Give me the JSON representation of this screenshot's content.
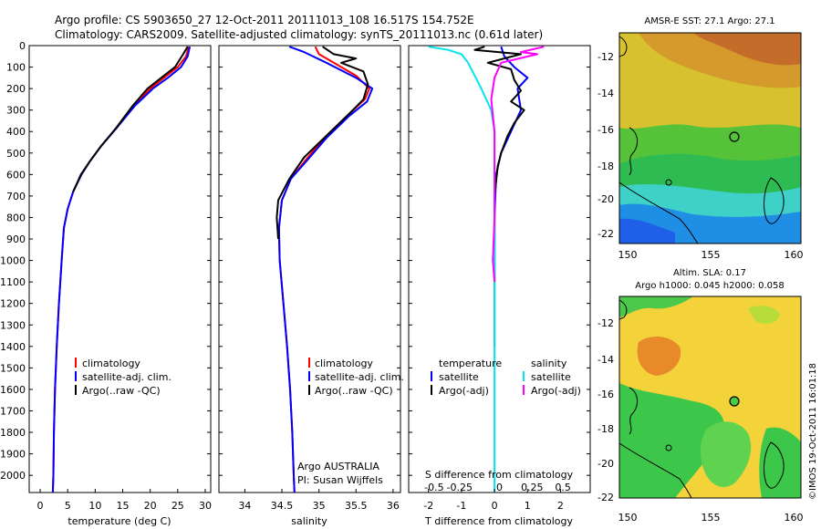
{
  "title": {
    "line1": "Argo profile: CS 5903650_27 12-Oct-2011 20111013_108 16.517S 154.752E",
    "line2": "Climatology: CARS2009. Satellite-adjusted climatology: synTS_20111013.nc (0.61d later)"
  },
  "colors": {
    "climatology": "#ff0000",
    "satellite": "#0000ff",
    "argo": "#000000",
    "sal_sat": "#00e5ee",
    "sal_argo": "#ff00ff"
  },
  "depth_axis": {
    "ticks": [
      0,
      100,
      200,
      300,
      400,
      500,
      600,
      700,
      800,
      900,
      1000,
      1100,
      1200,
      1300,
      1400,
      1500,
      1600,
      1700,
      1800,
      1900,
      2000
    ],
    "range": [
      0,
      2080
    ]
  },
  "chart_data": [
    {
      "type": "line",
      "id": "temperature",
      "xlabel": "temperature (deg C)",
      "xlim": [
        -2,
        31
      ],
      "xticks": [
        0,
        5,
        10,
        15,
        20,
        25,
        30
      ],
      "legend": [
        "climatology",
        "satellite-adj. clim.",
        "Argo(..raw -QC)"
      ],
      "series": [
        {
          "name": "climatology",
          "color": "#ff0000",
          "points": [
            [
              27.0,
              5
            ],
            [
              26.5,
              50
            ],
            [
              25.0,
              100
            ],
            [
              22.5,
              150
            ],
            [
              20.0,
              200
            ],
            [
              17.0,
              280
            ],
            [
              14.0,
              380
            ],
            [
              11.0,
              470
            ],
            [
              9.0,
              540
            ],
            [
              7.5,
              600
            ],
            [
              6.0,
              680
            ],
            [
              5.0,
              760
            ],
            [
              4.3,
              850
            ],
            [
              3.9,
              1000
            ],
            [
              3.4,
              1200
            ],
            [
              3.0,
              1400
            ],
            [
              2.7,
              1600
            ],
            [
              2.5,
              1800
            ],
            [
              2.4,
              2000
            ],
            [
              2.3,
              2080
            ]
          ]
        },
        {
          "name": "satellite-adj. clim.",
          "color": "#0000ff",
          "points": [
            [
              27.2,
              5
            ],
            [
              26.8,
              50
            ],
            [
              25.6,
              100
            ],
            [
              23.2,
              150
            ],
            [
              20.5,
              200
            ],
            [
              17.2,
              280
            ],
            [
              14.0,
              380
            ],
            [
              11.0,
              470
            ],
            [
              9.0,
              540
            ],
            [
              7.5,
              600
            ],
            [
              6.0,
              680
            ],
            [
              5.0,
              760
            ],
            [
              4.3,
              850
            ],
            [
              3.9,
              1000
            ],
            [
              3.4,
              1200
            ],
            [
              3.0,
              1400
            ],
            [
              2.7,
              1600
            ],
            [
              2.5,
              1800
            ],
            [
              2.4,
              2000
            ],
            [
              2.3,
              2080
            ]
          ]
        },
        {
          "name": "Argo(..raw -QC)",
          "color": "#000000",
          "points": [
            [
              26.8,
              5
            ],
            [
              26.0,
              40
            ],
            [
              24.5,
              100
            ],
            [
              22.0,
              150
            ],
            [
              19.5,
              200
            ],
            [
              16.8,
              280
            ],
            [
              13.9,
              380
            ],
            [
              11.0,
              470
            ],
            [
              9.0,
              540
            ],
            [
              7.4,
              600
            ],
            [
              6.0,
              680
            ]
          ]
        }
      ]
    },
    {
      "type": "line",
      "id": "salinity",
      "xlabel": "salinity",
      "xlim": [
        33.65,
        36.1
      ],
      "xticks": [
        34,
        34.5,
        35,
        35.5,
        36
      ],
      "legend": [
        "climatology",
        "satellite-adj. clim.",
        "Argo(..raw -QC)"
      ],
      "annotation": [
        "Argo AUSTRALIA",
        "PI: Susan Wijffels"
      ],
      "series": [
        {
          "name": "climatology",
          "color": "#ff0000",
          "points": [
            [
              34.95,
              5
            ],
            [
              35.0,
              40
            ],
            [
              35.2,
              80
            ],
            [
              35.5,
              140
            ],
            [
              35.68,
              200
            ],
            [
              35.62,
              250
            ],
            [
              35.4,
              320
            ],
            [
              35.1,
              420
            ],
            [
              34.85,
              520
            ],
            [
              34.62,
              620
            ],
            [
              34.5,
              720
            ],
            [
              34.46,
              850
            ],
            [
              34.47,
              1000
            ],
            [
              34.52,
              1200
            ],
            [
              34.57,
              1400
            ],
            [
              34.61,
              1600
            ],
            [
              34.64,
              1800
            ],
            [
              34.66,
              2000
            ],
            [
              34.67,
              2080
            ]
          ]
        },
        {
          "name": "satellite-adj. clim.",
          "color": "#0000ff",
          "points": [
            [
              34.6,
              5
            ],
            [
              34.8,
              30
            ],
            [
              35.1,
              80
            ],
            [
              35.5,
              150
            ],
            [
              35.72,
              200
            ],
            [
              35.65,
              260
            ],
            [
              35.4,
              330
            ],
            [
              35.1,
              430
            ],
            [
              34.85,
              530
            ],
            [
              34.62,
              620
            ],
            [
              34.5,
              720
            ],
            [
              34.46,
              850
            ],
            [
              34.47,
              1000
            ],
            [
              34.52,
              1200
            ],
            [
              34.57,
              1400
            ],
            [
              34.61,
              1600
            ],
            [
              34.64,
              1800
            ],
            [
              34.66,
              2000
            ],
            [
              34.67,
              2080
            ]
          ]
        },
        {
          "name": "Argo(..raw -QC)",
          "color": "#000000",
          "points": [
            [
              35.05,
              5
            ],
            [
              35.2,
              40
            ],
            [
              35.5,
              60
            ],
            [
              35.3,
              80
            ],
            [
              35.6,
              120
            ],
            [
              35.66,
              180
            ],
            [
              35.6,
              250
            ],
            [
              35.4,
              320
            ],
            [
              35.1,
              420
            ],
            [
              34.8,
              520
            ],
            [
              34.6,
              620
            ],
            [
              34.45,
              720
            ],
            [
              34.43,
              800
            ],
            [
              34.45,
              900
            ]
          ]
        }
      ]
    },
    {
      "type": "line",
      "id": "difference",
      "xlabel": "T difference from climatology",
      "xlim": [
        -2.6,
        2.9
      ],
      "xticks": [
        -2,
        -1,
        0,
        1,
        2
      ],
      "x2label": "S difference from climatology",
      "x2ticks": [
        "-0.5",
        "-0.25",
        "0",
        "0.25",
        "0.5"
      ],
      "legend": [
        "temperature",
        "satellite",
        "Argo(-adj)",
        "salinity",
        "satellite",
        "Argo(-adj)"
      ],
      "series": [
        {
          "name": "temperature satellite",
          "color": "#0000ff",
          "points": [
            [
              0.2,
              5
            ],
            [
              0.3,
              50
            ],
            [
              0.6,
              100
            ],
            [
              1.0,
              150
            ],
            [
              0.7,
              200
            ],
            [
              0.8,
              300
            ],
            [
              0.5,
              400
            ],
            [
              0.2,
              500
            ],
            [
              0.05,
              600
            ],
            [
              0,
              800
            ],
            [
              0,
              1100
            ]
          ]
        },
        {
          "name": "temperature Argo(-adj)",
          "color": "#000000",
          "points": [
            [
              -0.3,
              5
            ],
            [
              -0.6,
              20
            ],
            [
              0.8,
              40
            ],
            [
              -0.2,
              80
            ],
            [
              0.5,
              110
            ],
            [
              0.6,
              160
            ],
            [
              0.8,
              210
            ],
            [
              0.5,
              260
            ],
            [
              0.9,
              300
            ],
            [
              0.6,
              360
            ],
            [
              0.4,
              420
            ],
            [
              0.2,
              500
            ],
            [
              0.1,
              560
            ],
            [
              0,
              700
            ],
            [
              0,
              900
            ],
            [
              0,
              1100
            ],
            [
              0,
              1400
            ]
          ]
        },
        {
          "name": "salinity satellite",
          "color": "#00e5ee",
          "points": [
            [
              -2.0,
              5
            ],
            [
              -1.4,
              20
            ],
            [
              -1.0,
              40
            ],
            [
              -0.8,
              80
            ],
            [
              -0.4,
              200
            ],
            [
              -0.1,
              300
            ],
            [
              0,
              400
            ],
            [
              0,
              600
            ],
            [
              0,
              900
            ],
            [
              0,
              1300
            ],
            [
              0,
              1700
            ],
            [
              0,
              2000
            ],
            [
              0,
              2080
            ]
          ]
        },
        {
          "name": "salinity Argo(-adj)",
          "color": "#ff00ff",
          "points": [
            [
              1.5,
              5
            ],
            [
              0.8,
              30
            ],
            [
              1.3,
              40
            ],
            [
              0.2,
              80
            ],
            [
              0,
              150
            ],
            [
              -0.1,
              250
            ],
            [
              0,
              400
            ],
            [
              0,
              600
            ],
            [
              0,
              800
            ],
            [
              -0.05,
              1000
            ],
            [
              0,
              1100
            ]
          ]
        }
      ]
    }
  ],
  "maps": [
    {
      "title": "AMSR-E SST: 27.1 Argo: 27.1",
      "lat_ticks": [
        "-12",
        "-14",
        "-16",
        "-18",
        "-20",
        "-22"
      ],
      "lon_ticks": [
        "150",
        "155",
        "160"
      ]
    },
    {
      "title1": "Altim. SLA: 0.17",
      "title2": "Argo h1000: 0.045 h2000: 0.058",
      "lat_ticks": [
        "-12",
        "-14",
        "-16",
        "-18",
        "-20",
        "-22"
      ],
      "lon_ticks": [
        "150",
        "155",
        "160"
      ]
    }
  ],
  "watermark": "©IMOS 19-Oct-2011 16:01:18"
}
